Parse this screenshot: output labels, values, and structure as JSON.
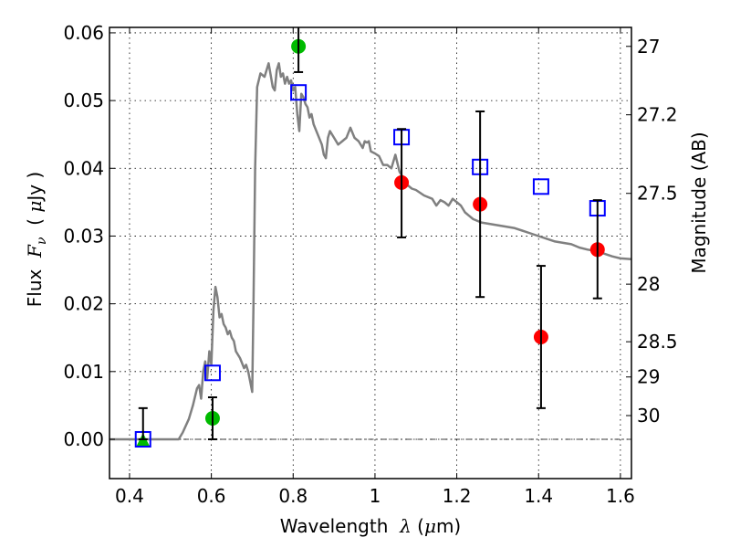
{
  "chart_data": {
    "type": "scatter",
    "title": "",
    "xlabel": "Wavelength  λ (μm)",
    "xlabel_parts": {
      "prefix": "Wavelength  ",
      "symbol": "λ",
      "suffix_open": " (",
      "unit_symbol": "μ",
      "unit_rest": "m)"
    },
    "ylabel": "Flux  F_ν ( μJy )",
    "ylabel_parts": {
      "prefix": "Flux  ",
      "symbol": "F",
      "subscript": "ν",
      "mid": "  ( ",
      "unit_symbol": "μ",
      "unit_rest": "Jy )"
    },
    "y2label": "Magnitude (AB)",
    "xlim": [
      0.351,
      1.627
    ],
    "ylim": [
      -0.0058,
      0.0608
    ],
    "grid": true,
    "xticks": [
      0.4,
      0.6,
      0.8,
      1.0,
      1.2,
      1.4,
      1.6
    ],
    "xtick_labels": [
      "0.4",
      "0.6",
      "0.8",
      "1",
      "1.2",
      "1.4",
      "1.6"
    ],
    "yticks": [
      0.0,
      0.01,
      0.02,
      0.03,
      0.04,
      0.05,
      0.06
    ],
    "ytick_labels": [
      "0.00",
      "0.01",
      "0.02",
      "0.03",
      "0.04",
      "0.05",
      "0.06"
    ],
    "y2ticks": [
      {
        "label": "27",
        "flux": 0.058
      },
      {
        "label": "27.2",
        "flux": 0.0479
      },
      {
        "label": "27.5",
        "flux": 0.0363
      },
      {
        "label": "28",
        "flux": 0.0229
      },
      {
        "label": "28.5",
        "flux": 0.0144
      },
      {
        "label": "29",
        "flux": 0.0092
      },
      {
        "label": "30",
        "flux": 0.0035
      }
    ],
    "zero_line": 0.0,
    "colors": {
      "model": "#808080",
      "model_photometry": "#0000ff",
      "detections": "#ff0000",
      "optical": "#00bb00",
      "errorbar": "#000000",
      "grid": "#555555"
    },
    "series": [
      {
        "name": "model-spectrum",
        "type": "line",
        "x": [
          0.351,
          0.52,
          0.53,
          0.545,
          0.555,
          0.565,
          0.57,
          0.575,
          0.58,
          0.585,
          0.59,
          0.595,
          0.6,
          0.605,
          0.61,
          0.615,
          0.62,
          0.625,
          0.63,
          0.635,
          0.64,
          0.645,
          0.65,
          0.655,
          0.66,
          0.67,
          0.68,
          0.685,
          0.69,
          0.695,
          0.7,
          0.703,
          0.707,
          0.712,
          0.72,
          0.73,
          0.74,
          0.75,
          0.755,
          0.76,
          0.765,
          0.77,
          0.775,
          0.78,
          0.785,
          0.79,
          0.795,
          0.8,
          0.805,
          0.81,
          0.815,
          0.82,
          0.825,
          0.83,
          0.835,
          0.84,
          0.845,
          0.85,
          0.86,
          0.87,
          0.875,
          0.88,
          0.885,
          0.89,
          0.9,
          0.91,
          0.92,
          0.93,
          0.94,
          0.95,
          0.96,
          0.97,
          0.975,
          0.98,
          0.985,
          0.99,
          1.0,
          1.01,
          1.02,
          1.03,
          1.04,
          1.05,
          1.06,
          1.07,
          1.08,
          1.09,
          1.1,
          1.12,
          1.14,
          1.15,
          1.16,
          1.17,
          1.18,
          1.19,
          1.2,
          1.21,
          1.22,
          1.23,
          1.24,
          1.26,
          1.28,
          1.3,
          1.32,
          1.34,
          1.36,
          1.38,
          1.4,
          1.42,
          1.44,
          1.46,
          1.48,
          1.5,
          1.52,
          1.54,
          1.56,
          1.58,
          1.6,
          1.627
        ],
        "y": [
          0.0,
          0.0,
          0.001,
          0.003,
          0.005,
          0.0075,
          0.008,
          0.006,
          0.01,
          0.0115,
          0.009,
          0.013,
          0.011,
          0.019,
          0.0225,
          0.021,
          0.018,
          0.0185,
          0.017,
          0.0165,
          0.0155,
          0.016,
          0.015,
          0.0145,
          0.013,
          0.012,
          0.0105,
          0.011,
          0.01,
          0.0085,
          0.007,
          0.02,
          0.04,
          0.052,
          0.054,
          0.0535,
          0.0555,
          0.052,
          0.0515,
          0.0545,
          0.0555,
          0.0535,
          0.054,
          0.0525,
          0.0535,
          0.0525,
          0.053,
          0.0515,
          0.052,
          0.048,
          0.0455,
          0.051,
          0.0505,
          0.0495,
          0.049,
          0.0475,
          0.048,
          0.0465,
          0.045,
          0.0435,
          0.042,
          0.0415,
          0.0445,
          0.0455,
          0.0445,
          0.0435,
          0.044,
          0.0445,
          0.046,
          0.0445,
          0.044,
          0.043,
          0.044,
          0.0438,
          0.044,
          0.0425,
          0.0422,
          0.0418,
          0.0405,
          0.0405,
          0.04,
          0.042,
          0.0395,
          0.0385,
          0.0375,
          0.037,
          0.0368,
          0.036,
          0.0355,
          0.0345,
          0.0353,
          0.035,
          0.0345,
          0.0355,
          0.035,
          0.0345,
          0.0335,
          0.033,
          0.0325,
          0.032,
          0.0318,
          0.0316,
          0.0314,
          0.0312,
          0.0308,
          0.0304,
          0.03,
          0.0296,
          0.0292,
          0.029,
          0.0288,
          0.0283,
          0.028,
          0.0278,
          0.0274,
          0.027,
          0.0267,
          0.0266
        ]
      },
      {
        "name": "model-photometry",
        "type": "scatter",
        "marker": "open-square",
        "x": [
          0.433,
          0.603,
          0.813,
          1.065,
          1.257,
          1.406,
          1.544
        ],
        "y": [
          0.0,
          0.0098,
          0.0512,
          0.0446,
          0.0402,
          0.0373,
          0.0341
        ]
      },
      {
        "name": "optical-upper",
        "type": "scatter",
        "marker": "triangle",
        "x": [
          0.433
        ],
        "y": [
          0.0
        ],
        "yerr_low": [
          0.0
        ],
        "yerr_high": [
          0.0046
        ]
      },
      {
        "name": "optical-detections",
        "type": "scatter",
        "marker": "circle",
        "x": [
          0.603,
          0.813
        ],
        "y": [
          0.0031,
          0.058
        ],
        "yerr_low": [
          0.0,
          0.0542
        ],
        "yerr_high": [
          0.0062,
          0.064
        ]
      },
      {
        "name": "nir-detections",
        "type": "scatter",
        "marker": "circle",
        "x": [
          1.065,
          1.257,
          1.406,
          1.544
        ],
        "y": [
          0.0379,
          0.0347,
          0.0151,
          0.028
        ],
        "yerr_low": [
          0.0298,
          0.021,
          0.0046,
          0.0208
        ],
        "yerr_high": [
          0.0458,
          0.0484,
          0.0256,
          0.0353
        ]
      }
    ]
  }
}
